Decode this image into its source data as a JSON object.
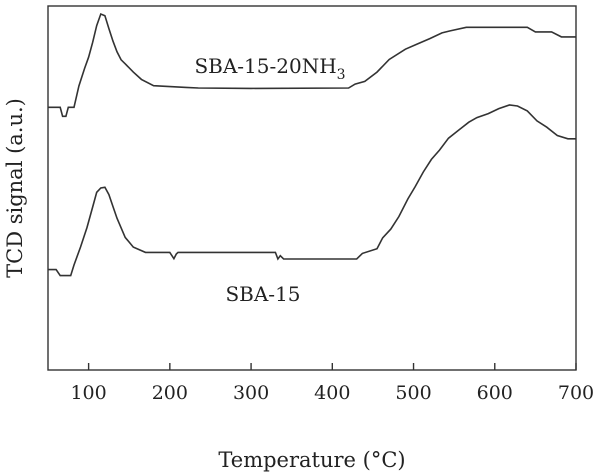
{
  "chart_data": {
    "type": "line",
    "xlabel": "Temperature (°C)",
    "ylabel": "TCD signal (a.u.)",
    "xlim": [
      50,
      700
    ],
    "ylim": [
      0,
      100
    ],
    "xticks": [
      100,
      200,
      300,
      400,
      500,
      600,
      700
    ],
    "y_tick_labels": false,
    "grid": false,
    "series": [
      {
        "name": "SBA-15-20NH3",
        "label_parts": {
          "main": "SBA-15-20NH",
          "sub": "3"
        },
        "points": [
          [
            50,
            71.9
          ],
          [
            65,
            71.9
          ],
          [
            68,
            69.2
          ],
          [
            72,
            69.2
          ],
          [
            75,
            71.9
          ],
          [
            82,
            71.9
          ],
          [
            88,
            78.3
          ],
          [
            95,
            83.6
          ],
          [
            100,
            87.0
          ],
          [
            105,
            91.5
          ],
          [
            110,
            96.5
          ],
          [
            115,
            100.0
          ],
          [
            120,
            99.5
          ],
          [
            125,
            95.6
          ],
          [
            130,
            91.8
          ],
          [
            135,
            88.6
          ],
          [
            140,
            86.2
          ],
          [
            145,
            85.0
          ],
          [
            155,
            82.5
          ],
          [
            165,
            80.3
          ],
          [
            180,
            78.4
          ],
          [
            220,
            77.9
          ],
          [
            235,
            77.7
          ],
          [
            300,
            77.6
          ],
          [
            420,
            77.7
          ],
          [
            428,
            78.9
          ],
          [
            440,
            79.7
          ],
          [
            455,
            82.5
          ],
          [
            470,
            86.3
          ],
          [
            490,
            89.4
          ],
          [
            505,
            91.0
          ],
          [
            520,
            92.6
          ],
          [
            535,
            94.3
          ],
          [
            545,
            94.9
          ],
          [
            565,
            96.0
          ],
          [
            640,
            96.0
          ],
          [
            650,
            94.6
          ],
          [
            670,
            94.6
          ],
          [
            682,
            93.1
          ],
          [
            700,
            93.1
          ]
        ]
      },
      {
        "name": "SBA-15",
        "label_parts": {
          "main": "SBA-15",
          "sub": ""
        },
        "points": [
          [
            50,
            23.0
          ],
          [
            60,
            23.0
          ],
          [
            65,
            21.2
          ],
          [
            78,
            21.2
          ],
          [
            82,
            24.4
          ],
          [
            90,
            29.8
          ],
          [
            98,
            35.7
          ],
          [
            105,
            41.9
          ],
          [
            110,
            46.3
          ],
          [
            115,
            47.6
          ],
          [
            120,
            47.8
          ],
          [
            125,
            45.6
          ],
          [
            130,
            42.0
          ],
          [
            135,
            38.5
          ],
          [
            140,
            35.6
          ],
          [
            145,
            32.7
          ],
          [
            155,
            29.8
          ],
          [
            170,
            28.2
          ],
          [
            200,
            28.2
          ],
          [
            205,
            26.3
          ],
          [
            208,
            27.7
          ],
          [
            210,
            28.2
          ],
          [
            330,
            28.2
          ],
          [
            333,
            26.2
          ],
          [
            336,
            27.2
          ],
          [
            340,
            26.2
          ],
          [
            430,
            26.2
          ],
          [
            437,
            27.9
          ],
          [
            455,
            29.3
          ],
          [
            462,
            32.6
          ],
          [
            472,
            35.2
          ],
          [
            482,
            39.0
          ],
          [
            493,
            44.3
          ],
          [
            502,
            48.0
          ],
          [
            512,
            52.4
          ],
          [
            522,
            56.2
          ],
          [
            532,
            59.0
          ],
          [
            543,
            62.6
          ],
          [
            556,
            65.1
          ],
          [
            568,
            67.4
          ],
          [
            578,
            68.8
          ],
          [
            592,
            70.0
          ],
          [
            605,
            71.5
          ],
          [
            618,
            72.6
          ],
          [
            628,
            72.3
          ],
          [
            640,
            70.8
          ],
          [
            652,
            67.8
          ],
          [
            664,
            65.9
          ],
          [
            677,
            63.4
          ],
          [
            690,
            62.4
          ],
          [
            700,
            62.4
          ]
        ]
      }
    ]
  }
}
